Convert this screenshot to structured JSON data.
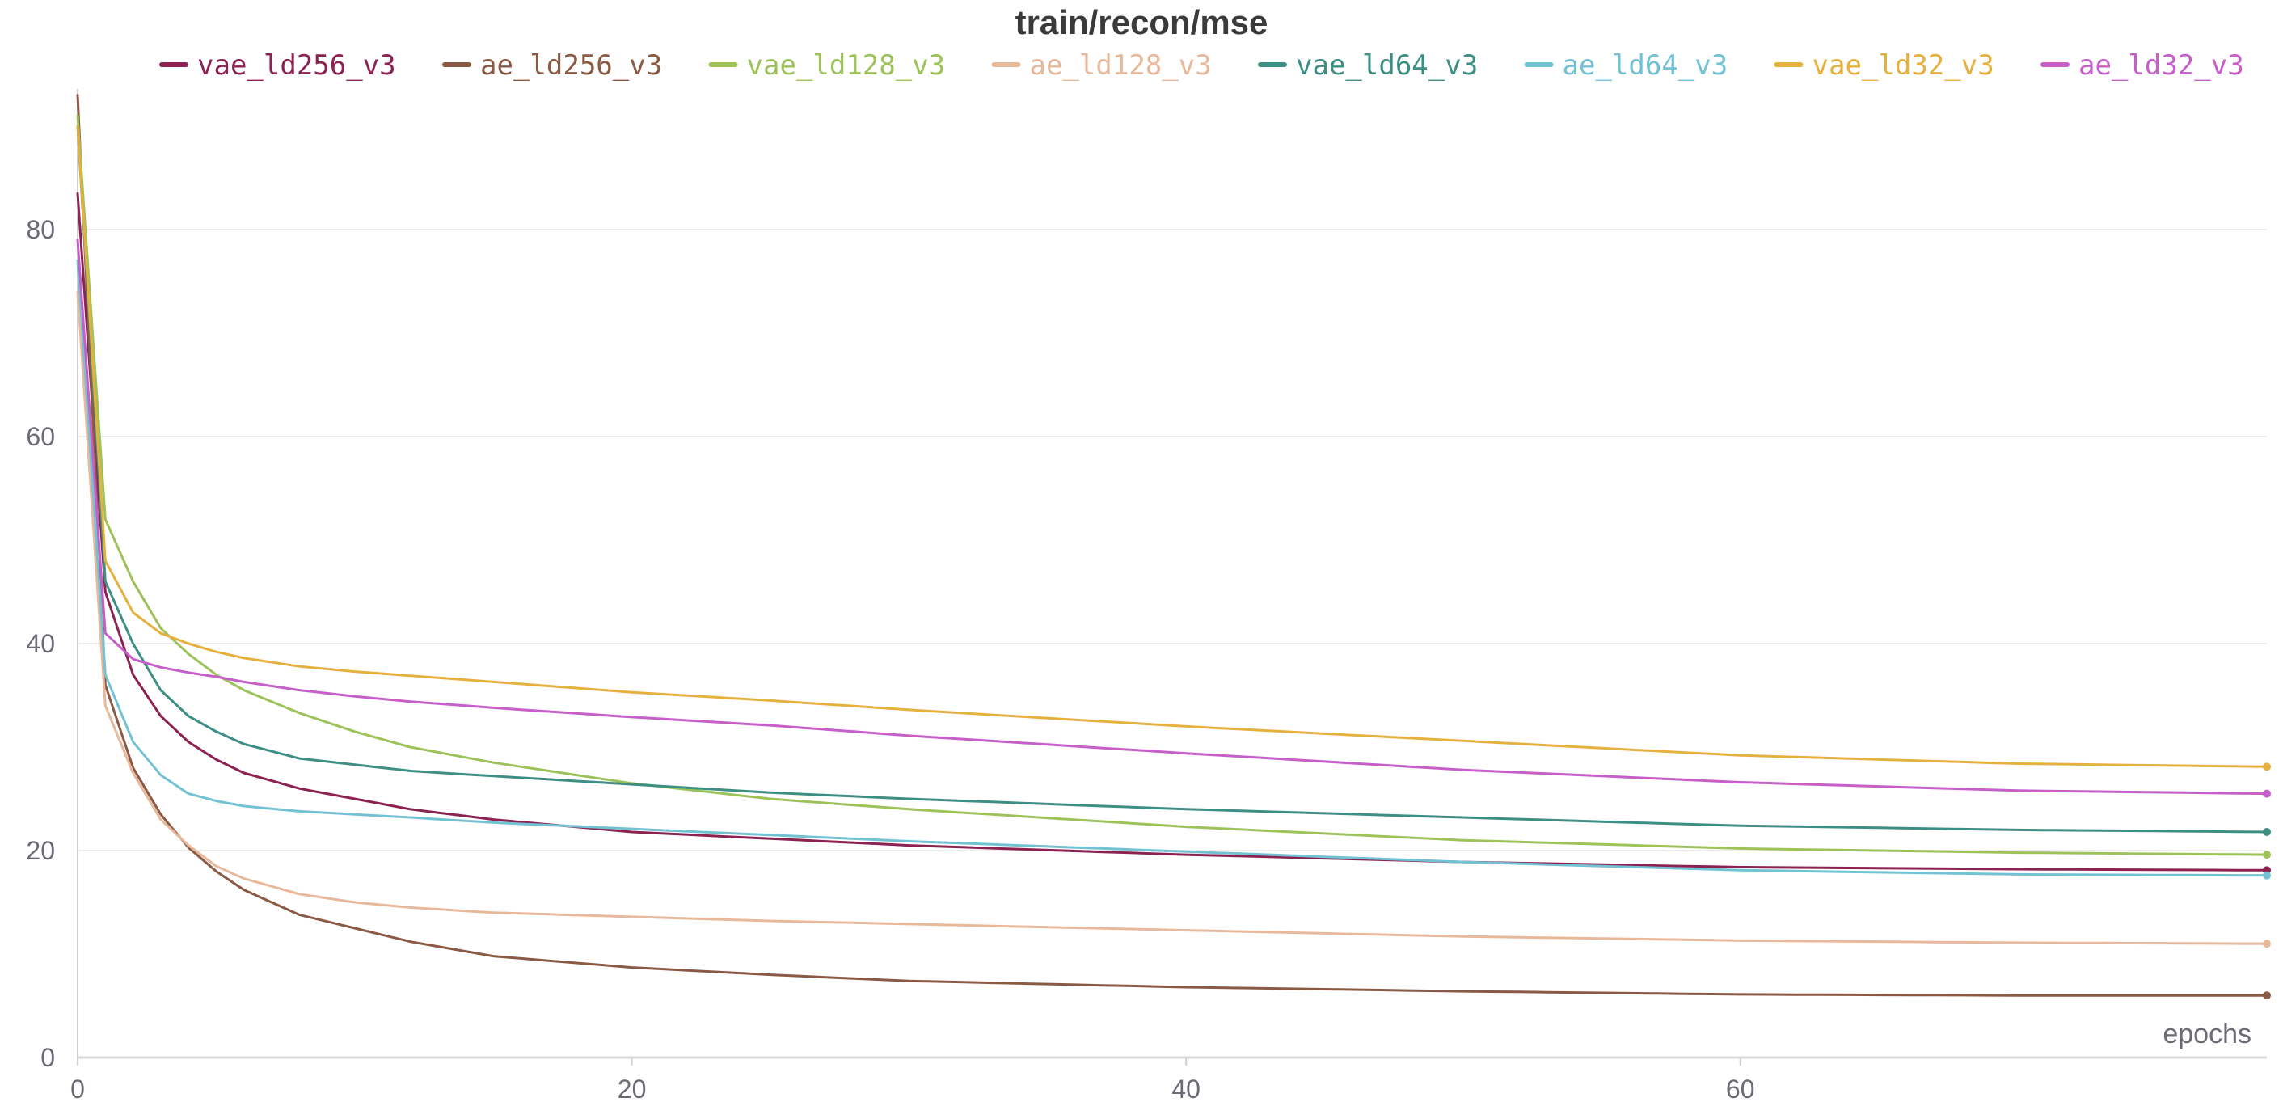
{
  "chart_data": {
    "type": "line",
    "title": "train/recon/mse",
    "xlabel": "epochs",
    "ylabel": "",
    "xlim": [
      0,
      79
    ],
    "ylim": [
      0,
      95
    ],
    "xticks": [
      0,
      20,
      40,
      60
    ],
    "yticks": [
      0,
      20,
      40,
      60,
      80
    ],
    "grid": true,
    "legend_position": "top",
    "series": [
      {
        "name": "vae_ld256_v3",
        "color": "#8b2252",
        "points": [
          [
            0,
            83.5
          ],
          [
            1,
            45
          ],
          [
            2,
            37
          ],
          [
            3,
            33
          ],
          [
            4,
            30.5
          ],
          [
            5,
            28.8
          ],
          [
            6,
            27.5
          ],
          [
            8,
            26
          ],
          [
            10,
            25
          ],
          [
            12,
            24
          ],
          [
            15,
            23
          ],
          [
            20,
            21.8
          ],
          [
            30,
            20.5
          ],
          [
            40,
            19.6
          ],
          [
            50,
            18.9
          ],
          [
            60,
            18.4
          ],
          [
            70,
            18.2
          ],
          [
            79,
            18.1
          ]
        ]
      },
      {
        "name": "ae_ld256_v3",
        "color": "#8b5a45",
        "points": [
          [
            0,
            93
          ],
          [
            1,
            36
          ],
          [
            2,
            28
          ],
          [
            3,
            23.5
          ],
          [
            4,
            20.3
          ],
          [
            5,
            18
          ],
          [
            6,
            16.2
          ],
          [
            8,
            13.8
          ],
          [
            10,
            12.5
          ],
          [
            12,
            11.2
          ],
          [
            15,
            9.8
          ],
          [
            20,
            8.7
          ],
          [
            25,
            8
          ],
          [
            30,
            7.4
          ],
          [
            40,
            6.8
          ],
          [
            50,
            6.4
          ],
          [
            60,
            6.1
          ],
          [
            70,
            6
          ],
          [
            79,
            6
          ]
        ]
      },
      {
        "name": "vae_ld128_v3",
        "color": "#9dc25a",
        "points": [
          [
            0,
            91
          ],
          [
            1,
            52
          ],
          [
            2,
            46
          ],
          [
            3,
            41.5
          ],
          [
            4,
            39
          ],
          [
            5,
            37
          ],
          [
            6,
            35.5
          ],
          [
            8,
            33.3
          ],
          [
            10,
            31.5
          ],
          [
            12,
            30
          ],
          [
            15,
            28.5
          ],
          [
            20,
            26.5
          ],
          [
            25,
            25
          ],
          [
            30,
            24
          ],
          [
            40,
            22.3
          ],
          [
            50,
            21
          ],
          [
            60,
            20.2
          ],
          [
            70,
            19.8
          ],
          [
            79,
            19.6
          ]
        ]
      },
      {
        "name": "ae_ld128_v3",
        "color": "#e8b89b",
        "points": [
          [
            0,
            74
          ],
          [
            1,
            34
          ],
          [
            2,
            27.5
          ],
          [
            3,
            23
          ],
          [
            4,
            20.5
          ],
          [
            5,
            18.5
          ],
          [
            6,
            17.3
          ],
          [
            8,
            15.8
          ],
          [
            10,
            15
          ],
          [
            12,
            14.5
          ],
          [
            15,
            14
          ],
          [
            20,
            13.6
          ],
          [
            25,
            13.2
          ],
          [
            30,
            12.9
          ],
          [
            40,
            12.3
          ],
          [
            50,
            11.7
          ],
          [
            60,
            11.3
          ],
          [
            70,
            11.1
          ],
          [
            79,
            11
          ]
        ]
      },
      {
        "name": "vae_ld64_v3",
        "color": "#3d8f84",
        "points": [
          [
            0,
            90
          ],
          [
            1,
            46
          ],
          [
            2,
            40
          ],
          [
            3,
            35.5
          ],
          [
            4,
            33
          ],
          [
            5,
            31.5
          ],
          [
            6,
            30.3
          ],
          [
            8,
            28.9
          ],
          [
            10,
            28.3
          ],
          [
            12,
            27.7
          ],
          [
            15,
            27.2
          ],
          [
            20,
            26.4
          ],
          [
            25,
            25.6
          ],
          [
            30,
            25
          ],
          [
            40,
            24
          ],
          [
            50,
            23.2
          ],
          [
            60,
            22.4
          ],
          [
            70,
            22
          ],
          [
            79,
            21.8
          ]
        ]
      },
      {
        "name": "ae_ld64_v3",
        "color": "#73c2d4",
        "points": [
          [
            0,
            77
          ],
          [
            1,
            37
          ],
          [
            2,
            30.5
          ],
          [
            3,
            27.3
          ],
          [
            4,
            25.5
          ],
          [
            5,
            24.8
          ],
          [
            6,
            24.3
          ],
          [
            8,
            23.8
          ],
          [
            10,
            23.5
          ],
          [
            12,
            23.2
          ],
          [
            15,
            22.7
          ],
          [
            20,
            22.1
          ],
          [
            25,
            21.5
          ],
          [
            30,
            20.9
          ],
          [
            40,
            19.9
          ],
          [
            50,
            18.9
          ],
          [
            60,
            18.1
          ],
          [
            70,
            17.7
          ],
          [
            79,
            17.6
          ]
        ]
      },
      {
        "name": "vae_ld32_v3",
        "color": "#e6b03e",
        "points": [
          [
            0,
            90
          ],
          [
            1,
            48
          ],
          [
            2,
            43
          ],
          [
            3,
            41
          ],
          [
            4,
            40
          ],
          [
            5,
            39.2
          ],
          [
            6,
            38.6
          ],
          [
            8,
            37.8
          ],
          [
            10,
            37.3
          ],
          [
            12,
            36.9
          ],
          [
            15,
            36.3
          ],
          [
            20,
            35.3
          ],
          [
            25,
            34.5
          ],
          [
            30,
            33.6
          ],
          [
            40,
            32
          ],
          [
            50,
            30.6
          ],
          [
            60,
            29.2
          ],
          [
            70,
            28.4
          ],
          [
            79,
            28.1
          ]
        ]
      },
      {
        "name": "ae_ld32_v3",
        "color": "#c65fc9",
        "points": [
          [
            0,
            79
          ],
          [
            1,
            41
          ],
          [
            2,
            38.5
          ],
          [
            3,
            37.7
          ],
          [
            4,
            37.2
          ],
          [
            5,
            36.8
          ],
          [
            6,
            36.3
          ],
          [
            8,
            35.5
          ],
          [
            10,
            34.9
          ],
          [
            12,
            34.4
          ],
          [
            15,
            33.8
          ],
          [
            20,
            32.9
          ],
          [
            25,
            32.1
          ],
          [
            30,
            31.1
          ],
          [
            40,
            29.4
          ],
          [
            50,
            27.8
          ],
          [
            60,
            26.6
          ],
          [
            70,
            25.8
          ],
          [
            79,
            25.5
          ]
        ]
      }
    ]
  }
}
